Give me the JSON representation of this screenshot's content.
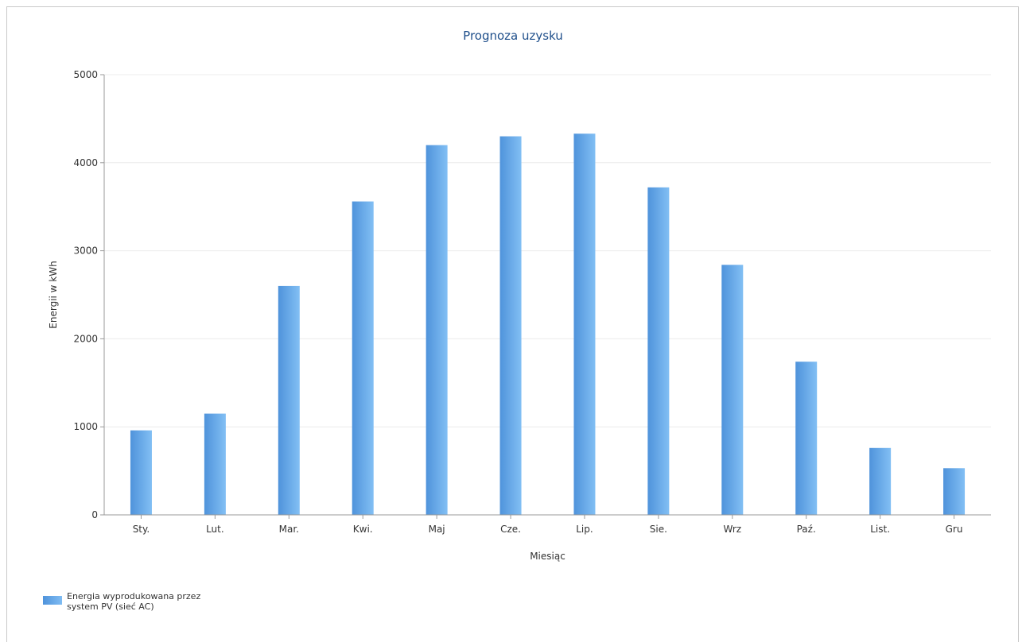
{
  "chart_data": {
    "type": "bar",
    "title": "Prognoza uzysku",
    "xlabel": "Miesiąc",
    "ylabel": "Energii w kWh",
    "ylim": [
      0,
      5000
    ],
    "yticks": [
      0,
      1000,
      2000,
      3000,
      4000,
      5000
    ],
    "grid": true,
    "legend_position": "bottom-left",
    "categories": [
      "Sty.",
      "Lut.",
      "Mar.",
      "Kwi.",
      "Maj",
      "Cze.",
      "Lip.",
      "Sie.",
      "Wrz",
      "Paź.",
      "List.",
      "Gru"
    ],
    "series": [
      {
        "name": "Energia wyprodukowana przez system PV (sieć AC)",
        "values": [
          960,
          1150,
          2600,
          3560,
          4200,
          4300,
          4330,
          3720,
          2840,
          1740,
          760,
          530
        ],
        "color": "#6aaeee"
      }
    ]
  }
}
